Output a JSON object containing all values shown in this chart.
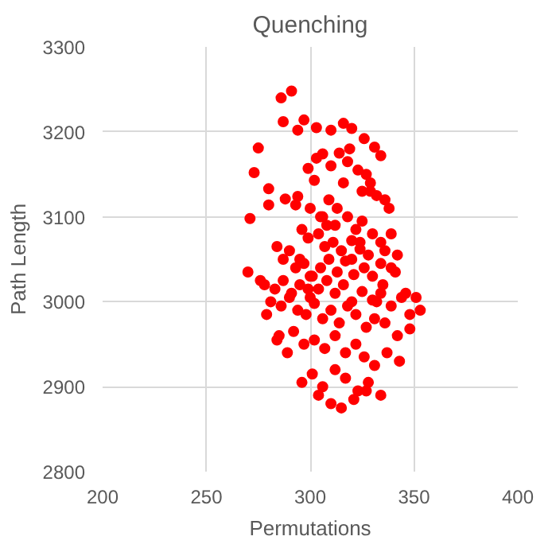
{
  "chart_data": {
    "type": "scatter",
    "title": "Quenching",
    "xlabel": "Permutations",
    "ylabel": "Path Length",
    "xlim": [
      200,
      400
    ],
    "ylim": [
      2800,
      3300
    ],
    "xticks": [
      200,
      250,
      300,
      350,
      400
    ],
    "yticks": [
      2800,
      2900,
      3000,
      3100,
      3200,
      3300
    ],
    "grid": true,
    "marker": "circle",
    "series": [
      {
        "color": "#ff0000",
        "x": [
          286,
          291,
          287,
          294,
          297,
          303,
          310,
          316,
          320,
          326,
          331,
          334,
          275,
          273,
          280,
          280,
          288,
          294,
          293,
          271,
          299,
          303,
          306,
          302,
          310,
          314,
          318,
          323,
          327,
          329,
          332,
          336,
          338,
          300,
          305,
          309,
          312,
          318,
          322,
          325,
          330,
          334,
          339,
          342,
          296,
          299,
          304,
          307,
          311,
          315,
          320,
          324,
          328,
          334,
          339,
          284,
          287,
          290,
          293,
          297,
          301,
          305,
          309,
          313,
          317,
          321,
          326,
          330,
          335,
          341,
          346,
          351,
          278,
          283,
          287,
          291,
          295,
          300,
          304,
          308,
          312,
          316,
          320,
          325,
          330,
          334,
          339,
          344,
          348,
          353,
          270,
          276,
          281,
          286,
          290,
          294,
          298,
          302,
          306,
          310,
          314,
          318,
          322,
          327,
          331,
          336,
          342,
          348,
          279,
          285,
          292,
          297,
          302,
          307,
          312,
          317,
          322,
          326,
          331,
          337,
          343,
          296,
          301,
          306,
          312,
          317,
          323,
          328,
          334,
          304,
          310,
          315,
          321,
          327,
          300,
          308,
          316,
          324,
          332,
          295,
          313,
          329,
          284,
          299,
          319,
          289,
          306,
          320,
          336,
          325
        ],
        "values": [
          3240,
          3248,
          3212,
          3202,
          3214,
          3205,
          3202,
          3210,
          3204,
          3192,
          3182,
          3172,
          3181,
          3152,
          3133,
          3114,
          3121,
          3124,
          3114,
          3098,
          3157,
          3169,
          3174,
          3143,
          3160,
          3175,
          3165,
          3155,
          3150,
          3140,
          3125,
          3120,
          3110,
          3110,
          3100,
          3120,
          3090,
          3100,
          3085,
          3095,
          3080,
          3070,
          3080,
          3055,
          3085,
          3075,
          3080,
          3065,
          3070,
          3060,
          3072,
          3062,
          3055,
          3045,
          3040,
          3065,
          3050,
          3060,
          3040,
          3045,
          3030,
          3040,
          3050,
          3035,
          3048,
          3032,
          3040,
          3030,
          3020,
          3035,
          3010,
          3005,
          3020,
          3015,
          3025,
          3010,
          3020,
          3005,
          3015,
          3025,
          3010,
          3020,
          3000,
          3012,
          3002,
          3010,
          2995,
          3005,
          2985,
          2990,
          3035,
          3025,
          3000,
          2995,
          3005,
          2990,
          2985,
          2998,
          2980,
          2990,
          2975,
          2995,
          2985,
          2970,
          2980,
          2975,
          2960,
          2968,
          2985,
          2960,
          2965,
          2950,
          2955,
          2945,
          2960,
          2940,
          2950,
          2935,
          2925,
          2940,
          2930,
          2905,
          2915,
          2900,
          2920,
          2910,
          2895,
          2905,
          2890,
          2890,
          2880,
          2875,
          2885,
          2895,
          3030,
          3090,
          3140,
          3070,
          3000,
          3050,
          3110,
          3130,
          2955,
          3015,
          3180,
          2940,
          3100,
          3050,
          3060,
          3130
        ]
      }
    ]
  }
}
